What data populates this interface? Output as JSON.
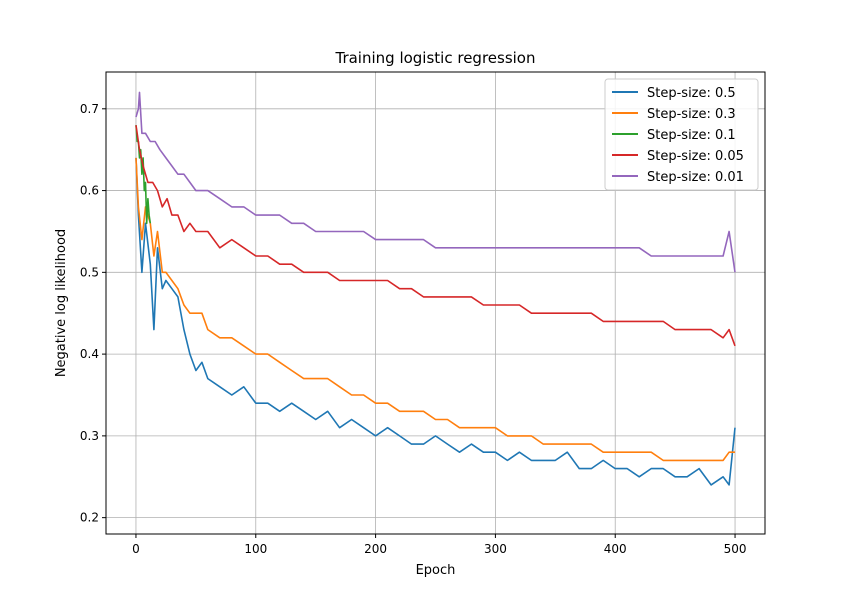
{
  "chart_data": {
    "type": "line",
    "title": "Training logistic regression",
    "xlabel": "Epoch",
    "ylabel": "Negative log likelihood",
    "xlim": [
      -25,
      525
    ],
    "ylim": [
      0.18,
      0.745
    ],
    "xticks": [
      0,
      100,
      200,
      300,
      400,
      500
    ],
    "yticks": [
      0.2,
      0.3,
      0.4,
      0.5,
      0.6,
      0.7
    ],
    "xtick_labels": [
      "0",
      "100",
      "200",
      "300",
      "400",
      "500"
    ],
    "ytick_labels": [
      "0.2",
      "0.3",
      "0.4",
      "0.5",
      "0.6",
      "0.7"
    ],
    "grid": true,
    "legend_position": "top-right",
    "series": [
      {
        "name": "Step-size: 0.5",
        "color": "#1f77b4",
        "x": [
          0,
          2,
          5,
          8,
          12,
          15,
          18,
          22,
          25,
          30,
          35,
          40,
          45,
          50,
          55,
          60,
          70,
          80,
          90,
          100,
          110,
          120,
          130,
          140,
          150,
          160,
          170,
          180,
          190,
          200,
          210,
          220,
          230,
          240,
          250,
          260,
          270,
          280,
          290,
          300,
          310,
          320,
          330,
          340,
          350,
          360,
          370,
          380,
          390,
          400,
          410,
          420,
          430,
          440,
          450,
          460,
          470,
          480,
          490,
          495,
          500
        ],
        "y": [
          0.64,
          0.57,
          0.5,
          0.56,
          0.51,
          0.43,
          0.53,
          0.48,
          0.49,
          0.48,
          0.47,
          0.43,
          0.4,
          0.38,
          0.39,
          0.37,
          0.36,
          0.35,
          0.36,
          0.34,
          0.34,
          0.33,
          0.34,
          0.33,
          0.32,
          0.33,
          0.31,
          0.32,
          0.31,
          0.3,
          0.31,
          0.3,
          0.29,
          0.29,
          0.3,
          0.29,
          0.28,
          0.29,
          0.28,
          0.28,
          0.27,
          0.28,
          0.27,
          0.27,
          0.27,
          0.28,
          0.26,
          0.26,
          0.27,
          0.26,
          0.26,
          0.25,
          0.26,
          0.26,
          0.25,
          0.25,
          0.26,
          0.24,
          0.25,
          0.24,
          0.31
        ]
      },
      {
        "name": "Step-size: 0.3",
        "color": "#ff7f0e",
        "x": [
          0,
          2,
          5,
          8,
          12,
          15,
          18,
          22,
          25,
          30,
          35,
          40,
          45,
          50,
          55,
          60,
          70,
          80,
          90,
          100,
          110,
          120,
          130,
          140,
          150,
          160,
          170,
          180,
          190,
          200,
          210,
          220,
          230,
          240,
          250,
          260,
          270,
          280,
          290,
          300,
          310,
          320,
          330,
          340,
          350,
          360,
          370,
          380,
          390,
          400,
          410,
          420,
          430,
          440,
          450,
          460,
          470,
          480,
          490,
          495,
          500
        ],
        "y": [
          0.64,
          0.58,
          0.54,
          0.58,
          0.56,
          0.52,
          0.55,
          0.5,
          0.5,
          0.49,
          0.48,
          0.46,
          0.45,
          0.45,
          0.45,
          0.43,
          0.42,
          0.42,
          0.41,
          0.4,
          0.4,
          0.39,
          0.38,
          0.37,
          0.37,
          0.37,
          0.36,
          0.35,
          0.35,
          0.34,
          0.34,
          0.33,
          0.33,
          0.33,
          0.32,
          0.32,
          0.31,
          0.31,
          0.31,
          0.31,
          0.3,
          0.3,
          0.3,
          0.29,
          0.29,
          0.29,
          0.29,
          0.29,
          0.28,
          0.28,
          0.28,
          0.28,
          0.28,
          0.27,
          0.27,
          0.27,
          0.27,
          0.27,
          0.27,
          0.28,
          0.28
        ]
      },
      {
        "name": "Step-size: 0.1",
        "color": "#2ca02c",
        "x": [
          0,
          1,
          2,
          3,
          4,
          5,
          6,
          7,
          8,
          9,
          10,
          11,
          12
        ],
        "y": [
          0.68,
          0.66,
          0.66,
          0.64,
          0.65,
          0.62,
          0.64,
          0.6,
          0.61,
          0.56,
          0.59,
          0.57,
          0.56
        ]
      },
      {
        "name": "Step-size: 0.05",
        "color": "#d62728",
        "x": [
          0,
          3,
          6,
          10,
          14,
          18,
          22,
          26,
          30,
          35,
          40,
          45,
          50,
          55,
          60,
          70,
          80,
          90,
          100,
          110,
          120,
          130,
          140,
          150,
          160,
          170,
          180,
          190,
          200,
          210,
          220,
          230,
          240,
          250,
          260,
          270,
          280,
          290,
          300,
          310,
          320,
          330,
          340,
          350,
          360,
          370,
          380,
          390,
          400,
          410,
          420,
          430,
          440,
          450,
          460,
          470,
          480,
          490,
          495,
          500
        ],
        "y": [
          0.68,
          0.65,
          0.63,
          0.61,
          0.61,
          0.6,
          0.58,
          0.59,
          0.57,
          0.57,
          0.55,
          0.56,
          0.55,
          0.55,
          0.55,
          0.53,
          0.54,
          0.53,
          0.52,
          0.52,
          0.51,
          0.51,
          0.5,
          0.5,
          0.5,
          0.49,
          0.49,
          0.49,
          0.49,
          0.49,
          0.48,
          0.48,
          0.47,
          0.47,
          0.47,
          0.47,
          0.47,
          0.46,
          0.46,
          0.46,
          0.46,
          0.45,
          0.45,
          0.45,
          0.45,
          0.45,
          0.45,
          0.44,
          0.44,
          0.44,
          0.44,
          0.44,
          0.44,
          0.43,
          0.43,
          0.43,
          0.43,
          0.42,
          0.43,
          0.41
        ]
      },
      {
        "name": "Step-size: 0.01",
        "color": "#9467bd",
        "x": [
          0,
          2,
          3,
          5,
          8,
          12,
          16,
          20,
          25,
          30,
          35,
          40,
          45,
          50,
          55,
          60,
          70,
          80,
          90,
          100,
          110,
          120,
          130,
          140,
          150,
          160,
          170,
          180,
          190,
          200,
          210,
          220,
          230,
          240,
          250,
          260,
          270,
          280,
          290,
          300,
          310,
          320,
          330,
          340,
          350,
          360,
          370,
          380,
          390,
          400,
          410,
          420,
          430,
          440,
          450,
          460,
          470,
          480,
          490,
          495,
          500
        ],
        "y": [
          0.69,
          0.7,
          0.72,
          0.67,
          0.67,
          0.66,
          0.66,
          0.65,
          0.64,
          0.63,
          0.62,
          0.62,
          0.61,
          0.6,
          0.6,
          0.6,
          0.59,
          0.58,
          0.58,
          0.57,
          0.57,
          0.57,
          0.56,
          0.56,
          0.55,
          0.55,
          0.55,
          0.55,
          0.55,
          0.54,
          0.54,
          0.54,
          0.54,
          0.54,
          0.53,
          0.53,
          0.53,
          0.53,
          0.53,
          0.53,
          0.53,
          0.53,
          0.53,
          0.53,
          0.53,
          0.53,
          0.53,
          0.53,
          0.53,
          0.53,
          0.53,
          0.53,
          0.52,
          0.52,
          0.52,
          0.52,
          0.52,
          0.52,
          0.52,
          0.55,
          0.5
        ]
      }
    ]
  }
}
